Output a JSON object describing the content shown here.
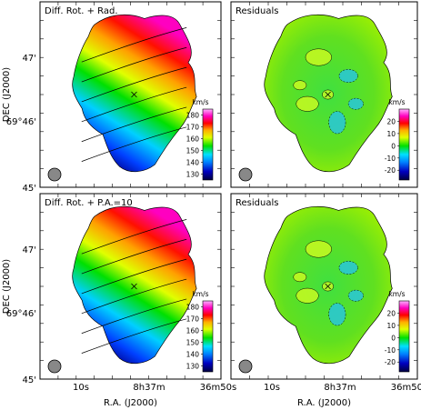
{
  "chart_data": [
    {
      "type": "heatmap",
      "title": "Diff. Rot. + Rad.",
      "ylabel": "DEC (J2000)",
      "xlabel": "",
      "colorbar": {
        "unit": "km/s",
        "ticks": [
          "130",
          "140",
          "150",
          "160",
          "170",
          "180"
        ],
        "range": [
          125,
          185
        ]
      }
    },
    {
      "type": "heatmap",
      "title": "Residuals",
      "xlabel": "",
      "ylabel": "",
      "colorbar": {
        "unit": "km/s",
        "ticks": [
          "-20",
          "-10",
          "0",
          "10",
          "20"
        ],
        "range": [
          -28,
          30
        ]
      }
    },
    {
      "type": "heatmap",
      "title": "Diff. Rot. + P.A.=10",
      "ylabel": "DEC (J2000)",
      "xlabel": "R.A. (J2000)",
      "colorbar": {
        "unit": "km/s",
        "ticks": [
          "130",
          "140",
          "150",
          "160",
          "170",
          "180"
        ],
        "range": [
          125,
          185
        ]
      }
    },
    {
      "type": "heatmap",
      "title": "Residuals",
      "ylabel": "",
      "xlabel": "R.A. (J2000)",
      "colorbar": {
        "unit": "km/s",
        "ticks": [
          "-20",
          "-10",
          "0",
          "10",
          "20"
        ],
        "range": [
          -28,
          30
        ]
      }
    }
  ],
  "axes": {
    "dec_ticks": [
      "47'",
      "69°46'",
      "45'"
    ],
    "ra_ticks": [
      "10s",
      "8h37m",
      "36m50s"
    ]
  },
  "colors": {
    "scale": [
      "#000040",
      "#0000c0",
      "#0080ff",
      "#00e0ff",
      "#00e000",
      "#e0ff00",
      "#ffb000",
      "#ff0000",
      "#ff00c0",
      "#ffb0ff"
    ]
  }
}
